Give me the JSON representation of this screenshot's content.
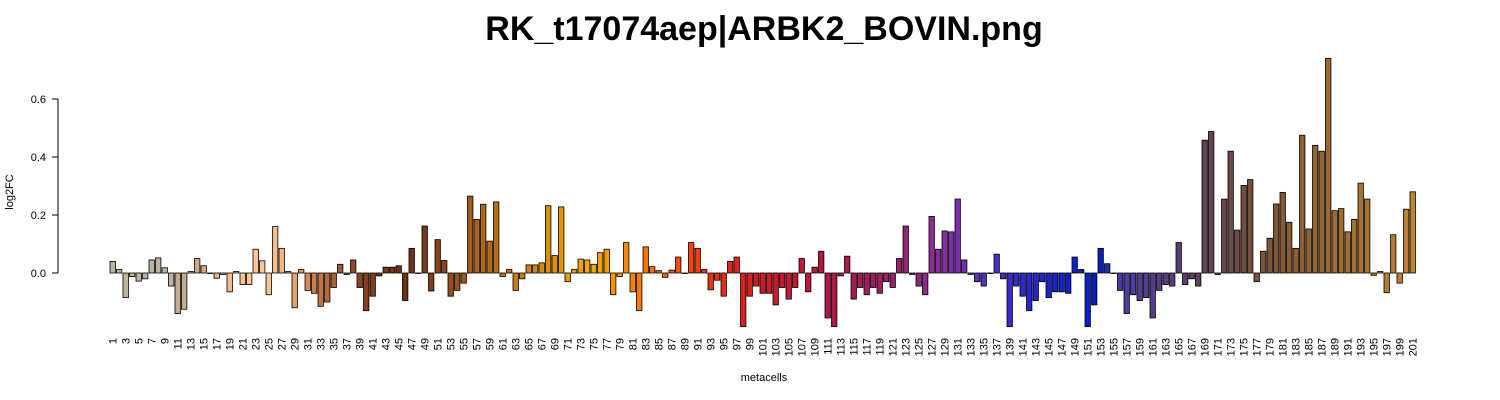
{
  "chart_data": {
    "type": "bar",
    "title": "RK_t17074aep|ARBK2_BOVIN.png",
    "xlabel": "metacells",
    "ylabel": "log2FC",
    "ylim": [
      -0.2,
      0.75
    ],
    "yticks": [
      0.0,
      0.2,
      0.4,
      0.6
    ],
    "ytick_labels": [
      "0.0",
      "0.2",
      "0.4",
      "0.6"
    ],
    "grid": false,
    "categories": [
      1,
      2,
      3,
      4,
      5,
      6,
      7,
      8,
      9,
      10,
      11,
      12,
      13,
      14,
      15,
      16,
      17,
      18,
      19,
      20,
      21,
      22,
      23,
      24,
      25,
      26,
      27,
      28,
      29,
      30,
      31,
      32,
      33,
      34,
      35,
      36,
      37,
      38,
      39,
      40,
      41,
      42,
      43,
      44,
      45,
      46,
      47,
      48,
      49,
      50,
      51,
      52,
      53,
      54,
      55,
      56,
      57,
      58,
      59,
      60,
      61,
      62,
      63,
      64,
      65,
      66,
      67,
      68,
      69,
      70,
      71,
      72,
      73,
      74,
      75,
      76,
      77,
      78,
      79,
      80,
      81,
      82,
      83,
      84,
      85,
      86,
      87,
      88,
      89,
      90,
      91,
      92,
      93,
      94,
      95,
      96,
      97,
      98,
      99,
      100,
      101,
      102,
      103,
      104,
      105,
      106,
      107,
      108,
      109,
      110,
      111,
      112,
      113,
      114,
      115,
      116,
      117,
      118,
      119,
      120,
      121,
      122,
      123,
      124,
      125,
      126,
      127,
      128,
      129,
      130,
      131,
      132,
      133,
      134,
      135,
      136,
      137,
      138,
      139,
      140,
      141,
      142,
      143,
      144,
      145,
      146,
      147,
      148,
      149,
      150,
      151,
      152,
      153,
      154,
      155,
      156,
      157,
      158,
      159,
      160,
      161,
      162,
      163,
      164,
      165,
      166,
      167,
      168,
      169,
      170,
      171,
      172,
      173,
      174,
      175,
      176,
      177,
      178,
      179,
      180,
      181,
      182,
      183,
      184,
      185,
      186,
      187,
      188,
      189,
      190,
      191,
      192,
      193,
      194,
      195,
      196,
      197,
      198,
      199,
      200,
      201
    ],
    "values": [
      0.04,
      0.012,
      -0.085,
      -0.012,
      -0.028,
      -0.02,
      0.045,
      0.052,
      0.018,
      -0.045,
      -0.14,
      -0.125,
      0.005,
      0.05,
      0.025,
      0,
      -0.018,
      -0.005,
      -0.065,
      0.005,
      -0.04,
      -0.04,
      0.082,
      0.042,
      -0.075,
      0.16,
      0.085,
      0.005,
      -0.12,
      0.012,
      -0.06,
      -0.07,
      -0.115,
      -0.1,
      -0.05,
      0.03,
      -0.005,
      0.045,
      -0.05,
      -0.13,
      -0.08,
      -0.01,
      0.02,
      0.02,
      0.025,
      -0.095,
      0.085,
      0.0,
      0.162,
      -0.062,
      0.115,
      0.043,
      -0.08,
      -0.06,
      -0.035,
      0.265,
      0.185,
      0.237,
      0.11,
      0.245,
      -0.012,
      0.012,
      -0.06,
      -0.02,
      0.028,
      0.028,
      0.035,
      0.232,
      0.06,
      0.228,
      -0.03,
      0.012,
      0.048,
      0.045,
      0.03,
      0.07,
      0.082,
      -0.075,
      -0.012,
      0.105,
      -0.065,
      -0.13,
      0.09,
      0.022,
      0.008,
      -0.015,
      0.01,
      0.055,
      0,
      0.105,
      0.085,
      0.012,
      -0.058,
      -0.025,
      -0.08,
      0.04,
      0.055,
      -0.185,
      -0.08,
      -0.045,
      -0.07,
      -0.07,
      -0.11,
      -0.05,
      -0.09,
      -0.05,
      0.05,
      -0.065,
      0.02,
      0.075,
      -0.155,
      -0.185,
      -0.01,
      0.058,
      -0.09,
      -0.05,
      -0.075,
      -0.05,
      -0.07,
      -0.03,
      -0.05,
      0.05,
      0.162,
      -0.005,
      -0.045,
      -0.075,
      0.195,
      0.082,
      0.145,
      0.142,
      0.255,
      0.045,
      -0.005,
      -0.03,
      -0.045,
      0,
      0.065,
      -0.02,
      -0.185,
      -0.045,
      -0.08,
      -0.13,
      -0.095,
      -0.03,
      -0.085,
      -0.065,
      -0.065,
      -0.07,
      0.055,
      0.012,
      -0.185,
      -0.11,
      0.085,
      0.032,
      0,
      -0.06,
      -0.14,
      -0.075,
      -0.095,
      -0.085,
      -0.155,
      -0.06,
      -0.04,
      -0.045,
      0.105,
      -0.04,
      -0.02,
      -0.045,
      0.458,
      0.488,
      -0.005,
      0.255,
      0.42,
      0.148,
      0.302,
      0.322,
      -0.03,
      0.075,
      0.12,
      0.238,
      0.278,
      0.175,
      0.085,
      0.475,
      0.152,
      0.44,
      0.42,
      0.74,
      0.215,
      0.222,
      0.142,
      0.185,
      0.31,
      0.255,
      -0.008,
      0.005,
      -0.068,
      0.132,
      -0.035,
      0.22,
      0.28
    ],
    "colors": [
      "#bfb39e",
      "#bfb39e",
      "#bfb39e",
      "#bfb39e",
      "#bfb39e",
      "#bfb39e",
      "#bfb39e",
      "#bfb39e",
      "#bfb39e",
      "#bfb39e",
      "#c3ab92",
      "#c3ab92",
      "#c7a98e",
      "#cca78a",
      "#d4aa88",
      "#deb085",
      "#e7b584",
      "#efba85",
      "#f3bd88",
      "#f6c08c",
      "#f9c391",
      "#fbc594",
      "#fcc696",
      "#fcc595",
      "#fbc191",
      "#f8bc8a",
      "#f3b47e",
      "#edab71",
      "#e6a166",
      "#dc955c",
      "#d38a53",
      "#c97f4b",
      "#bf7443",
      "#b56a3c",
      "#ab6136",
      "#a25831",
      "#99502c",
      "#914a28",
      "#8a4424",
      "#843f21",
      "#7f3b1e",
      "#7a371c",
      "#76341a",
      "#733218",
      "#703017",
      "#6f3016",
      "#703017",
      "#743318",
      "#79381a",
      "#7e3c1b",
      "#84411c",
      "#8b461c",
      "#914c1c",
      "#98521c",
      "#9e571b",
      "#a45c1a",
      "#aa6119",
      "#af6618",
      "#b46a17",
      "#b96e16",
      "#bd7215",
      "#c17614",
      "#c57a13",
      "#c97e12",
      "#cd8211",
      "#d18610",
      "#d58a0f",
      "#d98e0e",
      "#dd920d",
      "#e1960c",
      "#e59a0b",
      "#e99e0a",
      "#eda209",
      "#f0a508",
      "#f3a407",
      "#f5a006",
      "#f69b05",
      "#f79504",
      "#f88f03",
      "#f98903",
      "#fa8203",
      "#fa7b03",
      "#fa7403",
      "#fa6d04",
      "#fa6605",
      "#f95f06",
      "#f85807",
      "#f75109",
      "#f54a0b",
      "#f3440d",
      "#f13e0f",
      "#ee3811",
      "#eb3313",
      "#e82e15",
      "#e52a17",
      "#e22619",
      "#df231b",
      "#dc201d",
      "#d91e1f",
      "#d61c21",
      "#d31a23",
      "#d01926",
      "#cd1829",
      "#ca172c",
      "#c7162f",
      "#c41632",
      "#c11635",
      "#be1638",
      "#bb163b",
      "#b8163e",
      "#b51641",
      "#b21745",
      "#af1849",
      "#ac194d",
      "#a91a51",
      "#a61b55",
      "#a31c59",
      "#a01d5d",
      "#9d1f62",
      "#9a2066",
      "#97226b",
      "#94236f",
      "#912574",
      "#8e2778",
      "#8b297d",
      "#8d2a87",
      "#8e2c90",
      "#8a2d99",
      "#852ea1",
      "#7e2fa8",
      "#772fae",
      "#6f2fb4",
      "#672fb9",
      "#5f2fbd",
      "#572ec1",
      "#4f2dc4",
      "#482cc7",
      "#412bc9",
      "#3a2acb",
      "#3429cc",
      "#2e28cd",
      "#2827ce",
      "#2326ce",
      "#1e25ce",
      "#1a24cd",
      "#1623cc",
      "#1322cb",
      "#1021c9",
      "#0e20c7",
      "#0c1fc5",
      "#0b1ec2",
      "#0a1dbf",
      "#0a1cbc",
      "#2a2ab5",
      "#3a34ae",
      "#4439a8",
      "#4a3ca1",
      "#4e3d9b",
      "#513e95",
      "#533e8f",
      "#543e89",
      "#553e83",
      "#563e7d",
      "#573e77",
      "#583e71",
      "#5a3e6b",
      "#5c3f65",
      "#5e405f",
      "#60425a",
      "#634455",
      "#664650",
      "#69484c",
      "#6c4a48",
      "#6f4c44",
      "#724e41",
      "#75503e",
      "#78523b",
      "#7b5439",
      "#7e5637",
      "#815836",
      "#845a35",
      "#875c34",
      "#8a5e34",
      "#8d6034",
      "#906234",
      "#936434",
      "#966634",
      "#996834",
      "#9c6a34",
      "#9f6c34",
      "#a26e34",
      "#a57034",
      "#a87234",
      "#ab7434",
      "#ae7634",
      "#b17834",
      "#b47a34",
      "#b77c34",
      "#ba7e34",
      "#bd8034",
      "#c08234",
      "#c38434",
      "#c68634",
      "#c98834"
    ],
    "xtick_labels": [
      "1",
      "3",
      "5",
      "7",
      "9",
      "11",
      "13",
      "15",
      "17",
      "19",
      "21",
      "23",
      "25",
      "27",
      "29",
      "31",
      "33",
      "35",
      "37",
      "39",
      "41",
      "43",
      "45",
      "47",
      "49",
      "51",
      "53",
      "55",
      "57",
      "59",
      "61",
      "63",
      "65",
      "67",
      "69",
      "71",
      "73",
      "75",
      "77",
      "79",
      "81",
      "83",
      "85",
      "87",
      "89",
      "91",
      "93",
      "95",
      "97",
      "99",
      "101",
      "103",
      "105",
      "107",
      "109",
      "111",
      "113",
      "115",
      "117",
      "119",
      "121",
      "123",
      "125",
      "127",
      "129",
      "131",
      "133",
      "135",
      "137",
      "139",
      "141",
      "143",
      "145",
      "147",
      "149",
      "151",
      "153",
      "155",
      "157",
      "159",
      "161",
      "163",
      "165",
      "167",
      "169",
      "171",
      "173",
      "175",
      "177",
      "179",
      "181",
      "183",
      "185",
      "187",
      "189",
      "191",
      "193",
      "195",
      "197",
      "199",
      "201"
    ]
  }
}
